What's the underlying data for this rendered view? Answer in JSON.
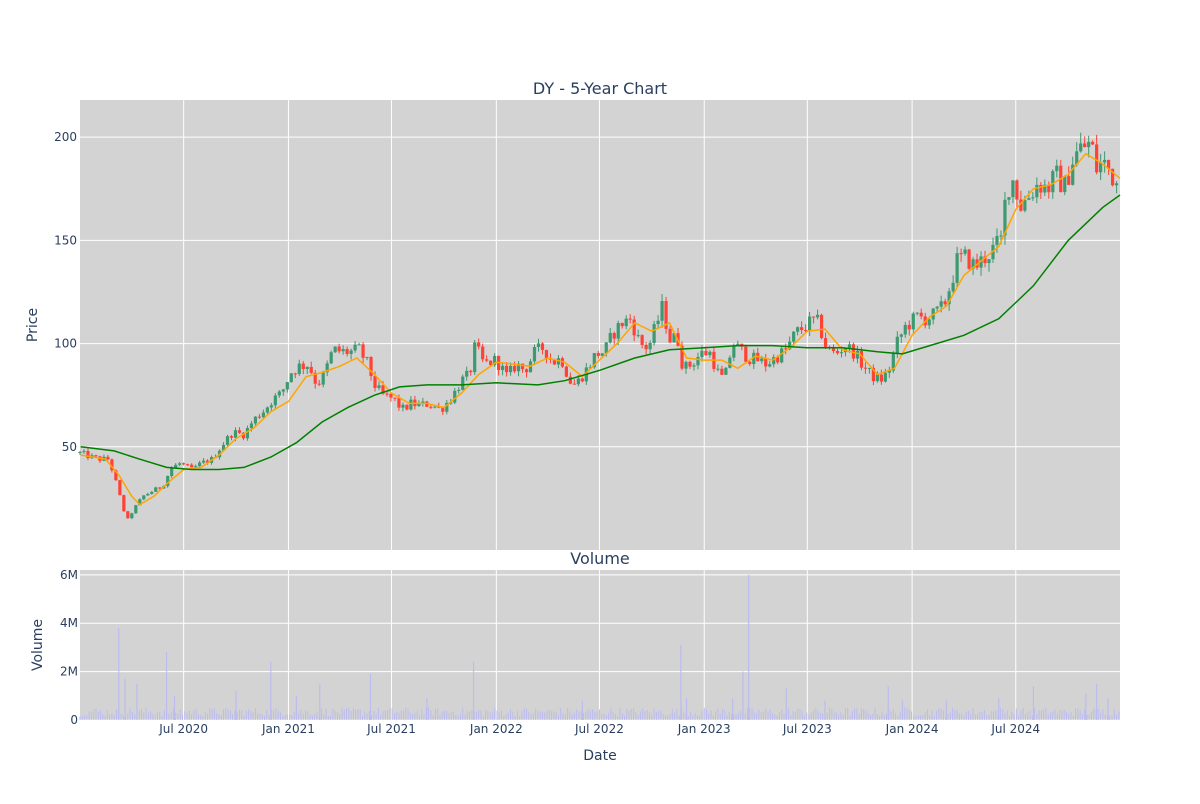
{
  "chart_data": [
    {
      "type": "candlestick",
      "title": "DY - 5-Year Chart",
      "xlabel": "",
      "ylabel": "Price",
      "ylim": [
        0,
        218
      ],
      "y_ticks": [
        50,
        100,
        150,
        200
      ],
      "grid": true,
      "x_range": [
        "2020-01-01",
        "2024-12-31"
      ],
      "colors": {
        "up": "#3d9970",
        "down": "#ff4136",
        "ma_short": "#ffa500",
        "ma_long": "#008000",
        "plot_bg": "#d3d3d3",
        "grid": "#ffffff"
      },
      "price_points": [
        [
          "2020-01-02",
          47
        ],
        [
          "2020-01-20",
          45
        ],
        [
          "2020-02-05",
          44
        ],
        [
          "2020-02-20",
          44
        ],
        [
          "2020-03-01",
          36
        ],
        [
          "2020-03-15",
          22
        ],
        [
          "2020-03-23",
          14
        ],
        [
          "2020-04-05",
          20
        ],
        [
          "2020-04-20",
          26
        ],
        [
          "2020-05-10",
          29
        ],
        [
          "2020-05-25",
          31
        ],
        [
          "2020-06-10",
          40
        ],
        [
          "2020-06-25",
          42
        ],
        [
          "2020-07-15",
          39
        ],
        [
          "2020-08-01",
          42
        ],
        [
          "2020-08-20",
          44
        ],
        [
          "2020-09-10",
          52
        ],
        [
          "2020-09-25",
          57
        ],
        [
          "2020-10-15",
          56
        ],
        [
          "2020-11-01",
          63
        ],
        [
          "2020-11-20",
          68
        ],
        [
          "2020-12-05",
          73
        ],
        [
          "2020-12-20",
          76
        ],
        [
          "2021-01-05",
          86
        ],
        [
          "2021-01-20",
          89
        ],
        [
          "2021-02-05",
          90
        ],
        [
          "2021-02-20",
          80
        ],
        [
          "2021-03-05",
          85
        ],
        [
          "2021-03-20",
          97
        ],
        [
          "2021-04-05",
          96
        ],
        [
          "2021-04-20",
          96
        ],
        [
          "2021-05-05",
          97
        ],
        [
          "2021-05-20",
          90
        ],
        [
          "2021-06-01",
          80
        ],
        [
          "2021-06-15",
          75
        ],
        [
          "2021-07-05",
          73
        ],
        [
          "2021-07-20",
          68
        ],
        [
          "2021-08-05",
          71
        ],
        [
          "2021-08-20",
          70
        ],
        [
          "2021-09-05",
          71
        ],
        [
          "2021-09-25",
          68
        ],
        [
          "2021-10-15",
          74
        ],
        [
          "2021-11-01",
          82
        ],
        [
          "2021-11-15",
          85
        ],
        [
          "2021-11-25",
          99
        ],
        [
          "2021-12-10",
          90
        ],
        [
          "2022-01-01",
          92
        ],
        [
          "2022-01-20",
          84
        ],
        [
          "2022-02-05",
          90
        ],
        [
          "2022-02-20",
          87
        ],
        [
          "2022-03-10",
          96
        ],
        [
          "2022-03-25",
          98
        ],
        [
          "2022-04-10",
          91
        ],
        [
          "2022-04-25",
          93
        ],
        [
          "2022-05-10",
          82
        ],
        [
          "2022-05-20",
          80
        ],
        [
          "2022-06-10",
          88
        ],
        [
          "2022-06-25",
          95
        ],
        [
          "2022-07-10",
          96
        ],
        [
          "2022-07-25",
          105
        ],
        [
          "2022-08-10",
          110
        ],
        [
          "2022-08-25",
          112
        ],
        [
          "2022-09-10",
          100
        ],
        [
          "2022-09-25",
          98
        ],
        [
          "2022-10-10",
          110
        ],
        [
          "2022-10-20",
          118
        ],
        [
          "2022-11-01",
          102
        ],
        [
          "2022-11-15",
          103
        ],
        [
          "2022-11-25",
          88
        ],
        [
          "2022-12-10",
          90
        ],
        [
          "2022-12-25",
          95
        ],
        [
          "2023-01-10",
          96
        ],
        [
          "2023-01-25",
          86
        ],
        [
          "2023-02-05",
          82
        ],
        [
          "2023-02-20",
          100
        ],
        [
          "2023-03-05",
          97
        ],
        [
          "2023-03-20",
          93
        ],
        [
          "2023-04-05",
          92
        ],
        [
          "2023-04-20",
          90
        ],
        [
          "2023-05-10",
          94
        ],
        [
          "2023-05-25",
          97
        ],
        [
          "2023-06-10",
          105
        ],
        [
          "2023-06-25",
          108
        ],
        [
          "2023-07-10",
          111
        ],
        [
          "2023-07-20",
          110
        ],
        [
          "2023-08-05",
          97
        ],
        [
          "2023-08-20",
          95
        ],
        [
          "2023-09-05",
          99
        ],
        [
          "2023-09-20",
          96
        ],
        [
          "2023-10-05",
          90
        ],
        [
          "2023-10-20",
          85
        ],
        [
          "2023-11-05",
          82
        ],
        [
          "2023-11-20",
          86
        ],
        [
          "2023-12-05",
          100
        ],
        [
          "2023-12-20",
          108
        ],
        [
          "2024-01-10",
          113
        ],
        [
          "2024-01-25",
          112
        ],
        [
          "2024-02-10",
          114
        ],
        [
          "2024-02-25",
          118
        ],
        [
          "2024-03-10",
          130
        ],
        [
          "2024-03-20",
          140
        ],
        [
          "2024-04-05",
          142
        ],
        [
          "2024-04-20",
          137
        ],
        [
          "2024-05-05",
          141
        ],
        [
          "2024-05-20",
          145
        ],
        [
          "2024-06-05",
          150
        ],
        [
          "2024-06-15",
          175
        ],
        [
          "2024-06-25",
          180
        ],
        [
          "2024-07-10",
          167
        ],
        [
          "2024-07-25",
          172
        ],
        [
          "2024-08-10",
          178
        ],
        [
          "2024-08-25",
          175
        ],
        [
          "2024-09-10",
          181
        ],
        [
          "2024-09-25",
          176
        ],
        [
          "2024-10-10",
          190
        ],
        [
          "2024-10-25",
          195
        ],
        [
          "2024-11-10",
          197
        ],
        [
          "2024-11-20",
          185
        ],
        [
          "2024-12-01",
          188
        ],
        [
          "2024-12-15",
          183
        ],
        [
          "2024-12-31",
          175
        ]
      ],
      "series": [
        {
          "kind": "sma_short",
          "points": [
            [
              "2020-01-02",
              46
            ],
            [
              "2020-02-15",
              44
            ],
            [
              "2020-03-10",
              36
            ],
            [
              "2020-04-01",
              26
            ],
            [
              "2020-04-15",
              22
            ],
            [
              "2020-05-10",
              26
            ],
            [
              "2020-06-01",
              32
            ],
            [
              "2020-07-01",
              39
            ],
            [
              "2020-08-01",
              40
            ],
            [
              "2020-09-01",
              46
            ],
            [
              "2020-10-01",
              54
            ],
            [
              "2020-11-01",
              59
            ],
            [
              "2020-12-01",
              67
            ],
            [
              "2021-01-01",
              72
            ],
            [
              "2021-02-01",
              84
            ],
            [
              "2021-03-01",
              86
            ],
            [
              "2021-04-01",
              89
            ],
            [
              "2021-05-01",
              93
            ],
            [
              "2021-06-01",
              85
            ],
            [
              "2021-07-01",
              76
            ],
            [
              "2021-08-01",
              71
            ],
            [
              "2021-09-01",
              71
            ],
            [
              "2021-10-01",
              69
            ],
            [
              "2021-11-01",
              76
            ],
            [
              "2021-12-01",
              85
            ],
            [
              "2022-01-01",
              91
            ],
            [
              "2022-02-01",
              90
            ],
            [
              "2022-03-01",
              89
            ],
            [
              "2022-04-01",
              93
            ],
            [
              "2022-05-01",
              91
            ],
            [
              "2022-06-01",
              84
            ],
            [
              "2022-07-01",
              92
            ],
            [
              "2022-08-01",
              100
            ],
            [
              "2022-09-01",
              110
            ],
            [
              "2022-10-01",
              106
            ],
            [
              "2022-11-01",
              110
            ],
            [
              "2022-12-01",
              93
            ],
            [
              "2023-01-01",
              92
            ],
            [
              "2023-02-01",
              92
            ],
            [
              "2023-03-01",
              88
            ],
            [
              "2023-04-01",
              94
            ],
            [
              "2023-05-01",
              92
            ],
            [
              "2023-06-01",
              98
            ],
            [
              "2023-07-01",
              106
            ],
            [
              "2023-08-01",
              107
            ],
            [
              "2023-09-01",
              97
            ],
            [
              "2023-10-01",
              95
            ],
            [
              "2023-11-01",
              85
            ],
            [
              "2023-12-01",
              88
            ],
            [
              "2024-01-01",
              104
            ],
            [
              "2024-02-01",
              113
            ],
            [
              "2024-03-01",
              118
            ],
            [
              "2024-04-01",
              133
            ],
            [
              "2024-05-01",
              140
            ],
            [
              "2024-06-01",
              147
            ],
            [
              "2024-07-01",
              165
            ],
            [
              "2024-08-01",
              175
            ],
            [
              "2024-09-01",
              177
            ],
            [
              "2024-10-01",
              182
            ],
            [
              "2024-11-01",
              192
            ],
            [
              "2024-12-01",
              187
            ],
            [
              "2024-12-31",
              180
            ]
          ]
        },
        {
          "kind": "sma_long",
          "points": [
            [
              "2020-01-02",
              50
            ],
            [
              "2020-03-01",
              48
            ],
            [
              "2020-04-15",
              44
            ],
            [
              "2020-06-01",
              40
            ],
            [
              "2020-07-15",
              39
            ],
            [
              "2020-09-01",
              39
            ],
            [
              "2020-10-15",
              40
            ],
            [
              "2020-12-01",
              45
            ],
            [
              "2021-01-15",
              52
            ],
            [
              "2021-03-01",
              62
            ],
            [
              "2021-04-15",
              69
            ],
            [
              "2021-06-01",
              75
            ],
            [
              "2021-07-15",
              79
            ],
            [
              "2021-09-01",
              80
            ],
            [
              "2021-11-01",
              80
            ],
            [
              "2022-01-01",
              81
            ],
            [
              "2022-03-15",
              80
            ],
            [
              "2022-05-01",
              82
            ],
            [
              "2022-07-01",
              87
            ],
            [
              "2022-09-01",
              93
            ],
            [
              "2022-11-01",
              97
            ],
            [
              "2023-01-01",
              98
            ],
            [
              "2023-03-01",
              99
            ],
            [
              "2023-05-01",
              99
            ],
            [
              "2023-07-01",
              98
            ],
            [
              "2023-09-01",
              98
            ],
            [
              "2023-11-01",
              96
            ],
            [
              "2023-12-15",
              95
            ],
            [
              "2024-02-01",
              99
            ],
            [
              "2024-04-01",
              104
            ],
            [
              "2024-06-01",
              112
            ],
            [
              "2024-08-01",
              128
            ],
            [
              "2024-10-01",
              150
            ],
            [
              "2024-12-01",
              166
            ],
            [
              "2024-12-31",
              172
            ]
          ]
        }
      ]
    },
    {
      "type": "bar",
      "title": "Volume",
      "xlabel": "Date",
      "ylabel": "Volume",
      "ylim": [
        0,
        6200000
      ],
      "y_ticks": [
        0,
        2000000,
        4000000,
        6000000
      ],
      "y_tick_labels": [
        "0",
        "2M",
        "4M",
        "6M"
      ],
      "x_ticks": [
        "2020-07-01",
        "2021-01-01",
        "2021-07-01",
        "2022-01-01",
        "2022-07-01",
        "2023-01-01",
        "2023-07-01",
        "2024-01-01",
        "2024-07-01"
      ],
      "x_tick_labels": [
        "Jul 2020",
        "Jan 2021",
        "Jul 2021",
        "Jan 2022",
        "Jul 2022",
        "Jan 2023",
        "Jul 2023",
        "Jan 2024",
        "Jul 2024"
      ],
      "grid": true,
      "colors": {
        "bar": "#bcbcf0",
        "plot_bg": "#d3d3d3",
        "grid": "#ffffff"
      },
      "baseline": 400000,
      "spikes": [
        [
          "2020-03-09",
          3800000
        ],
        [
          "2020-03-20",
          1700000
        ],
        [
          "2020-04-10",
          1500000
        ],
        [
          "2020-06-01",
          2800000
        ],
        [
          "2020-06-15",
          1000000
        ],
        [
          "2020-10-01",
          1200000
        ],
        [
          "2020-12-01",
          2400000
        ],
        [
          "2021-01-15",
          1000000
        ],
        [
          "2021-02-25",
          1500000
        ],
        [
          "2021-05-25",
          1900000
        ],
        [
          "2021-09-01",
          900000
        ],
        [
          "2021-11-22",
          2400000
        ],
        [
          "2022-06-01",
          800000
        ],
        [
          "2022-11-21",
          3100000
        ],
        [
          "2022-12-01",
          900000
        ],
        [
          "2023-02-20",
          900000
        ],
        [
          "2023-03-10",
          2000000
        ],
        [
          "2023-03-20",
          6000000
        ],
        [
          "2023-05-25",
          1300000
        ],
        [
          "2023-08-01",
          800000
        ],
        [
          "2023-11-20",
          1400000
        ],
        [
          "2023-12-15",
          800000
        ],
        [
          "2024-03-01",
          800000
        ],
        [
          "2024-06-01",
          900000
        ],
        [
          "2024-08-01",
          1400000
        ],
        [
          "2024-11-01",
          1100000
        ],
        [
          "2024-11-20",
          1500000
        ],
        [
          "2024-12-10",
          900000
        ]
      ]
    }
  ]
}
